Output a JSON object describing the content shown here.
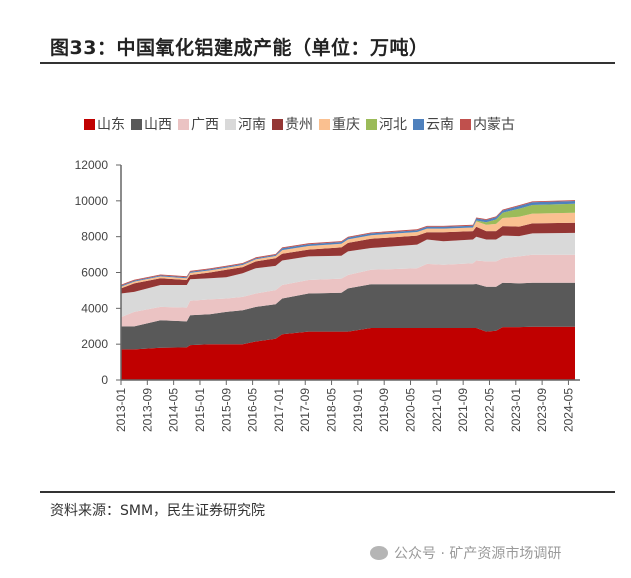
{
  "title": "图33：中国氧化铝建成产能（单位：万吨）",
  "source": "资料来源：SMM，民生证券研究院",
  "watermark": "公众号 · 矿产资源市场调研",
  "chart_data": {
    "type": "area",
    "stacked": true,
    "title": "",
    "xlabel": "",
    "ylabel": "",
    "ylim": [
      0,
      12000
    ],
    "yticks": [
      "0",
      "2000",
      "4000",
      "6000",
      "8000",
      "10000",
      "12000"
    ],
    "xticks": [
      "2013-01",
      "2013-09",
      "2014-05",
      "2015-01",
      "2015-09",
      "2016-05",
      "2017-01",
      "2017-09",
      "2018-05",
      "2019-01",
      "2019-09",
      "2020-05",
      "2021-01",
      "2021-09",
      "2022-05",
      "2023-01",
      "2023-09",
      "2024-05"
    ],
    "legend_position": "top",
    "grid": false,
    "x": [
      "2013-01",
      "2013-05",
      "2014-01",
      "2014-09",
      "2014-10",
      "2015-04",
      "2015-09",
      "2016-02",
      "2016-06",
      "2016-12",
      "2017-02",
      "2017-10",
      "2018-08",
      "2018-10",
      "2019-05",
      "2020-07",
      "2020-10",
      "2021-03",
      "2021-12",
      "2022-01",
      "2022-04",
      "2022-07",
      "2022-09",
      "2023-02",
      "2023-06",
      "2024-07"
    ],
    "series": [
      {
        "name": "山东",
        "color": "#C00000",
        "values": [
          1710,
          1710,
          1800,
          1820,
          1950,
          2000,
          2000,
          2000,
          2150,
          2300,
          2550,
          2700,
          2700,
          2700,
          2900,
          2900,
          2900,
          2900,
          2900,
          2900,
          2700,
          2750,
          2950,
          2950,
          2970,
          2970
        ]
      },
      {
        "name": "山西",
        "color": "#595959",
        "values": [
          1280,
          1280,
          1530,
          1450,
          1660,
          1665,
          1800,
          1890,
          1930,
          1930,
          2000,
          2130,
          2170,
          2410,
          2440,
          2440,
          2440,
          2440,
          2440,
          2460,
          2500,
          2450,
          2480,
          2440,
          2460,
          2460
        ]
      },
      {
        "name": "广西",
        "color": "#EBC3C3",
        "values": [
          520,
          810,
          750,
          770,
          810,
          835,
          750,
          750,
          750,
          790,
          750,
          750,
          790,
          750,
          810,
          900,
          1140,
          1090,
          1180,
          1310,
          1420,
          1420,
          1370,
          1510,
          1560,
          1560
        ]
      },
      {
        "name": "河南",
        "color": "#D9D9D9",
        "values": [
          1320,
          1120,
          1220,
          1260,
          1200,
          1180,
          1180,
          1320,
          1410,
          1350,
          1370,
          1320,
          1280,
          1320,
          1220,
          1320,
          1360,
          1310,
          1320,
          1320,
          1220,
          1220,
          1260,
          1130,
          1190,
          1220
        ]
      },
      {
        "name": "贵州",
        "color": "#943634",
        "values": [
          280,
          470,
          380,
          280,
          240,
          320,
          420,
          340,
          380,
          430,
          380,
          380,
          460,
          470,
          510,
          500,
          410,
          510,
          470,
          560,
          470,
          470,
          530,
          530,
          560,
          570
        ]
      },
      {
        "name": "重庆",
        "color": "#FAC090",
        "values": [
          100,
          100,
          100,
          100,
          120,
          120,
          120,
          120,
          120,
          120,
          200,
          200,
          200,
          200,
          200,
          200,
          200,
          200,
          200,
          300,
          350,
          400,
          450,
          550,
          550,
          560
        ]
      },
      {
        "name": "河北",
        "color": "#9BBB59",
        "values": [
          0,
          0,
          0,
          0,
          0,
          0,
          0,
          0,
          0,
          0,
          0,
          0,
          0,
          0,
          0,
          0,
          0,
          0,
          0,
          50,
          150,
          250,
          300,
          450,
          480,
          500
        ]
      },
      {
        "name": "云南",
        "color": "#4F81BD",
        "values": [
          60,
          60,
          60,
          60,
          60,
          60,
          60,
          60,
          60,
          60,
          100,
          100,
          100,
          100,
          100,
          100,
          100,
          100,
          100,
          120,
          120,
          120,
          120,
          150,
          150,
          150
        ]
      },
      {
        "name": "内蒙古",
        "color": "#C0504D",
        "values": [
          50,
          50,
          50,
          50,
          50,
          50,
          50,
          50,
          50,
          50,
          50,
          50,
          50,
          50,
          50,
          50,
          50,
          50,
          50,
          50,
          50,
          50,
          50,
          50,
          50,
          50
        ]
      }
    ]
  }
}
